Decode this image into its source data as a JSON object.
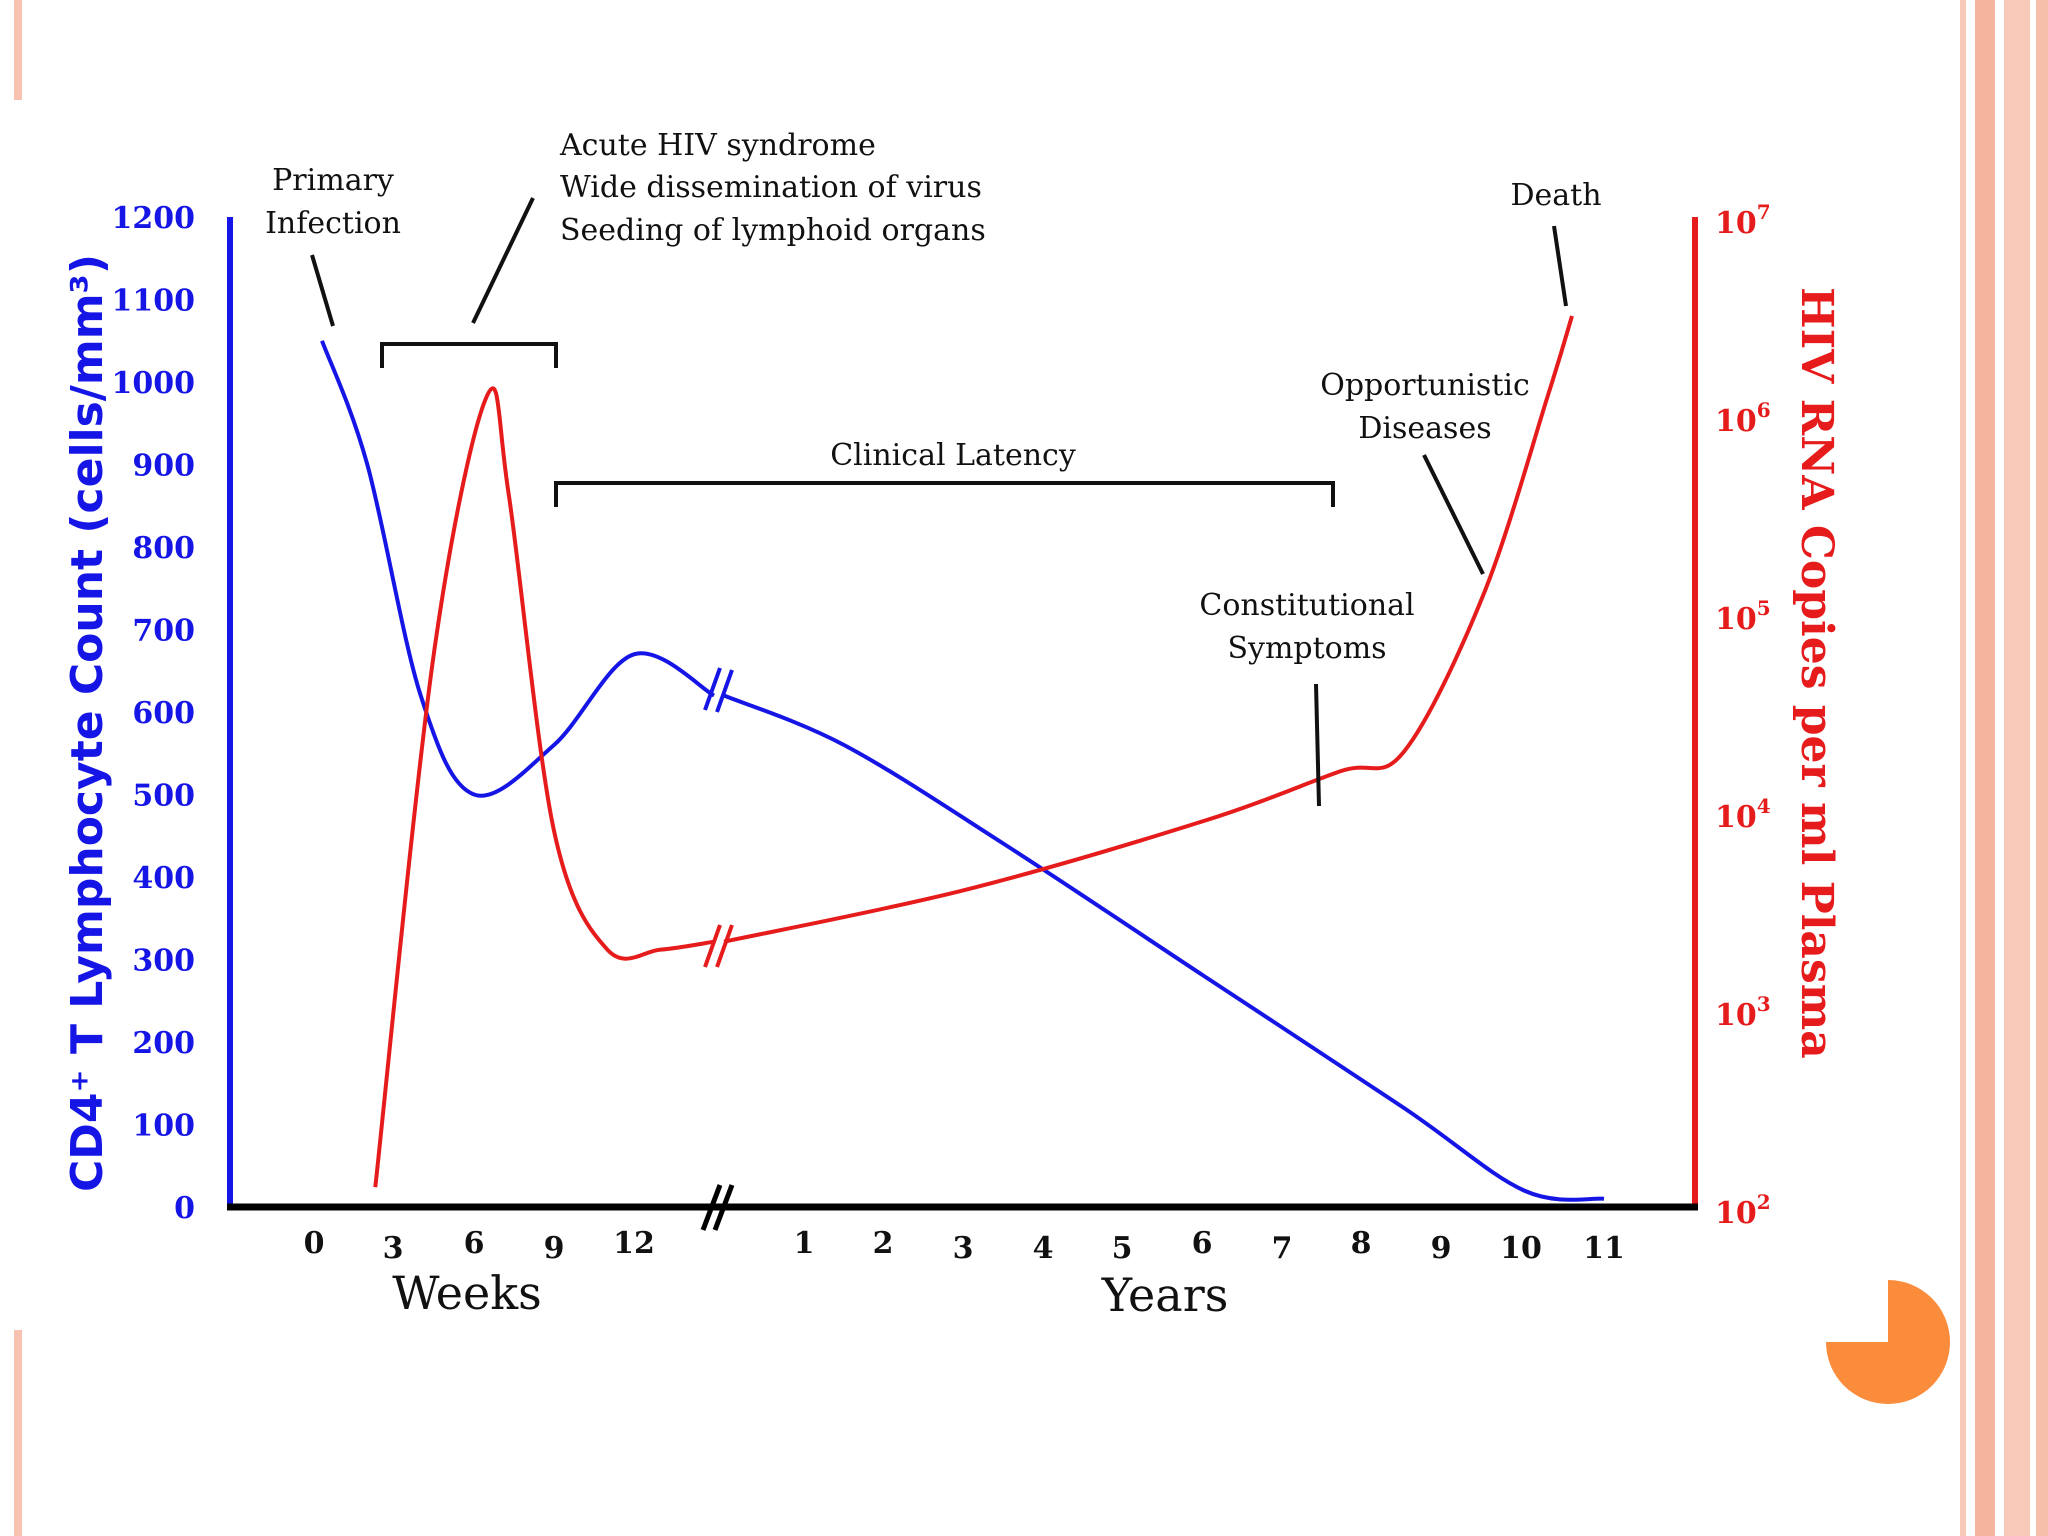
{
  "chart_data": {
    "type": "line",
    "title": "",
    "y_left": {
      "label": "CD4⁺ T Lymphocyte Count (cells/mm³)",
      "ticks": [
        "0",
        "100",
        "200",
        "300",
        "400",
        "500",
        "600",
        "700",
        "800",
        "900",
        "1000",
        "1100",
        "1200"
      ],
      "range": [
        0,
        1200
      ],
      "color": "#1515e6"
    },
    "y_right": {
      "label": "HIV RNA Copies per ml Plasma",
      "ticks": [
        {
          "base": "10",
          "exp": "2"
        },
        {
          "base": "10",
          "exp": "3"
        },
        {
          "base": "10",
          "exp": "4"
        },
        {
          "base": "10",
          "exp": "5"
        },
        {
          "base": "10",
          "exp": "6"
        },
        {
          "base": "10",
          "exp": "7"
        }
      ],
      "range_log10": [
        2,
        7
      ],
      "color": "#e61c1c"
    },
    "x": {
      "weeks_label": "Weeks",
      "weeks_ticks": [
        "0",
        "3",
        "6",
        "9",
        "12"
      ],
      "years_label": "Years",
      "years_ticks": [
        "1",
        "2",
        "3",
        "4",
        "5",
        "6",
        "7",
        "8",
        "9",
        "10",
        "11"
      ]
    },
    "series": [
      {
        "name": "CD4+ T Lymphocyte Count",
        "axis": "left",
        "color": "#1515e6",
        "segments": [
          {
            "period": "weeks",
            "points": [
              [
                0.3,
                1050
              ],
              [
                2,
                900
              ],
              [
                4,
                620
              ],
              [
                6,
                500
              ],
              [
                9,
                560
              ],
              [
                12,
                670
              ],
              [
                15,
                620
              ]
            ]
          },
          {
            "period": "years",
            "points": [
              [
                0,
                620
              ],
              [
                1.5,
                560
              ],
              [
                3.5,
                440
              ],
              [
                6,
                280
              ],
              [
                8.5,
                120
              ],
              [
                10,
                20
              ],
              [
                11,
                10
              ]
            ]
          }
        ]
      },
      {
        "name": "HIV RNA Copies per ml Plasma",
        "axis": "right",
        "color": "#e61c1c",
        "segments": [
          {
            "period": "weeks",
            "points_log10": [
              [
                2.3,
                2.1
              ],
              [
                4.5,
                4.8
              ],
              [
                6.5,
                6.1
              ],
              [
                7.3,
                5.6
              ],
              [
                9,
                3.9
              ],
              [
                11,
                3.3
              ],
              [
                13,
                3.3
              ],
              [
                15,
                3.34
              ]
            ]
          },
          {
            "period": "years",
            "points_log10": [
              [
                0,
                3.34
              ],
              [
                3,
                3.6
              ],
              [
                6,
                3.95
              ],
              [
                7.7,
                4.2
              ],
              [
                8.5,
                4.3
              ],
              [
                9.5,
                5.1
              ],
              [
                10.3,
                6.1
              ],
              [
                10.6,
                6.5
              ]
            ]
          }
        ]
      }
    ],
    "annotations": [
      {
        "text": [
          "Primary",
          "Infection"
        ]
      },
      {
        "text": [
          "Acute HIV syndrome",
          "Wide dissemination of virus",
          "Seeding of lymphoid organs"
        ]
      },
      {
        "text": [
          "Clinical Latency"
        ]
      },
      {
        "text": [
          "Constitutional",
          "Symptoms"
        ]
      },
      {
        "text": [
          "Opportunistic",
          "Diseases"
        ]
      },
      {
        "text": [
          "Death"
        ]
      }
    ]
  },
  "colors": {
    "accent_pie": "#fb8c3c",
    "frame": "#f7c3b0"
  }
}
